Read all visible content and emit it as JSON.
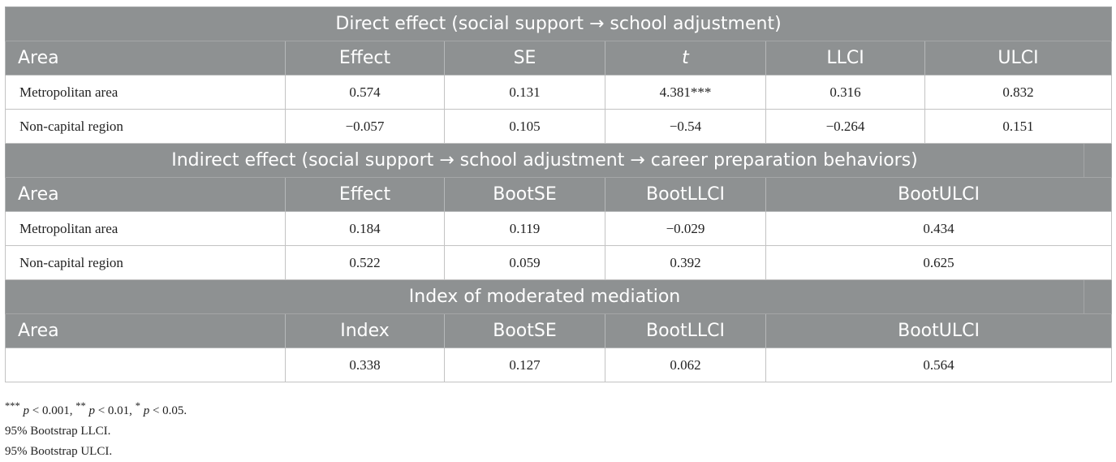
{
  "section1": {
    "title": "Direct effect (social support →  school adjustment)",
    "headers": [
      "Area",
      "Effect",
      "SE",
      "t",
      "LLCI",
      "ULCI"
    ],
    "rows": [
      [
        "Metropolitan area",
        "0.574",
        "0.131",
        "4.381***",
        "0.316",
        "0.832"
      ],
      [
        "Non-capital region",
        "−0.057",
        "0.105",
        "−0.54",
        "−0.264",
        "0.151"
      ]
    ]
  },
  "section2": {
    "title": "Indirect effect (social support →  school adjustment →  career preparation behaviors)",
    "headers": [
      "Area",
      "Effect",
      "BootSE",
      "BootLLCI",
      "BootULCI"
    ],
    "rows": [
      [
        "Metropolitan area",
        "0.184",
        "0.119",
        "−0.029",
        "0.434"
      ],
      [
        "Non-capital region",
        "0.522",
        "0.059",
        "0.392",
        "0.625"
      ]
    ]
  },
  "section3": {
    "title": "Index of moderated mediation",
    "headers": [
      "Area",
      "Index",
      "BootSE",
      "BootLLCI",
      "BootULCI"
    ],
    "rows": [
      [
        "",
        "0.338",
        "0.127",
        "0.062",
        "0.564"
      ]
    ]
  },
  "notes": {
    "significance": {
      "s1": "***",
      "p1": "p",
      "t1": " < 0.001, ",
      "s2": "**",
      "p2": "p",
      "t2": " < 0.01, ",
      "s3": "*",
      "p3": "p",
      "t3": " < 0.05."
    },
    "llci": "95% Bootstrap LLCI.",
    "ulci": "95% Bootstrap ULCI."
  },
  "colors": {
    "header_bg": "#8e9192",
    "header_text": "#ffffff",
    "border": "#c3c3c3"
  }
}
